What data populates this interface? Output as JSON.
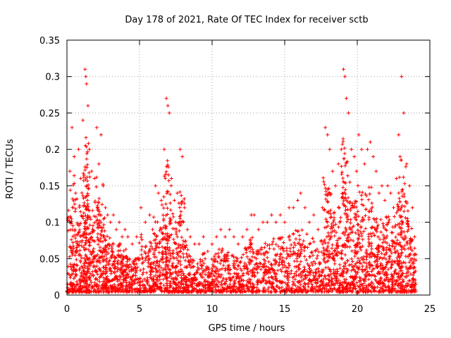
{
  "chart_data": {
    "type": "scatter",
    "title": "Day 178 of 2021, Rate Of TEC Index for receiver sctb",
    "xlabel": "GPS time / hours",
    "ylabel": "ROTI / TECUs",
    "xlim": [
      0,
      25
    ],
    "ylim": [
      0,
      0.35
    ],
    "x_ticks": [
      "0",
      "5",
      "10",
      "15",
      "20",
      "25"
    ],
    "y_ticks": [
      "0",
      "0.05",
      "0.1",
      "0.15",
      "0.2",
      "0.25",
      "0.3",
      "0.35"
    ],
    "grid": true,
    "legend": "none",
    "marker": "+",
    "color": "#ff0000",
    "series": [
      {
        "x": [
          0.05,
          0.2,
          0.35,
          0.5,
          0.6,
          0.8,
          0.95,
          1.1,
          1.25,
          1.3,
          1.35,
          1.45,
          1.55,
          1.7,
          1.9,
          2.05,
          2.2,
          2.35,
          2.5,
          2.65,
          2.8,
          3.0,
          3.2,
          3.4,
          3.6,
          3.8,
          4.0,
          4.2,
          4.5,
          4.8,
          5.1,
          5.4,
          5.7,
          5.9,
          6.1,
          6.3,
          6.5,
          6.7,
          6.85,
          6.95,
          7.05,
          7.2,
          7.4,
          7.6,
          7.8,
          7.95,
          8.1,
          8.3,
          8.5,
          8.8,
          9.1,
          9.4,
          9.7,
          10.0,
          10.3,
          10.6,
          10.9,
          11.2,
          11.5,
          11.8,
          12.1,
          12.4,
          12.7,
          12.9,
          13.2,
          13.5,
          13.8,
          14.1,
          14.4,
          14.7,
          15.0,
          15.3,
          15.6,
          15.9,
          16.1,
          16.4,
          16.7,
          17.0,
          17.3,
          17.6,
          17.8,
          17.95,
          18.1,
          18.3,
          18.5,
          18.7,
          18.9,
          19.05,
          19.15,
          19.25,
          19.4,
          19.6,
          19.8,
          19.95,
          20.1,
          20.3,
          20.5,
          20.7,
          20.9,
          21.1,
          21.3,
          21.5,
          21.7,
          21.9,
          22.1,
          22.3,
          22.5,
          22.7,
          22.85,
          22.95,
          23.05,
          23.2,
          23.4,
          23.6,
          23.8,
          23.95
        ],
        "y": [
          0.01,
          0.17,
          0.23,
          0.19,
          0.14,
          0.2,
          0.16,
          0.24,
          0.31,
          0.3,
          0.29,
          0.26,
          0.2,
          0.17,
          0.16,
          0.23,
          0.18,
          0.22,
          0.15,
          0.12,
          0.11,
          0.1,
          0.11,
          0.09,
          0.1,
          0.08,
          0.09,
          0.08,
          0.07,
          0.08,
          0.12,
          0.1,
          0.11,
          0.09,
          0.15,
          0.14,
          0.13,
          0.2,
          0.27,
          0.26,
          0.25,
          0.16,
          0.13,
          0.14,
          0.2,
          0.19,
          0.12,
          0.09,
          0.08,
          0.07,
          0.07,
          0.08,
          0.06,
          0.07,
          0.08,
          0.09,
          0.08,
          0.09,
          0.08,
          0.07,
          0.08,
          0.09,
          0.11,
          0.11,
          0.09,
          0.1,
          0.1,
          0.11,
          0.1,
          0.11,
          0.1,
          0.12,
          0.12,
          0.13,
          0.14,
          0.12,
          0.1,
          0.11,
          0.09,
          0.12,
          0.23,
          0.22,
          0.2,
          0.17,
          0.15,
          0.18,
          0.2,
          0.31,
          0.3,
          0.27,
          0.25,
          0.2,
          0.19,
          0.17,
          0.22,
          0.2,
          0.18,
          0.2,
          0.21,
          0.19,
          0.17,
          0.14,
          0.15,
          0.13,
          0.15,
          0.14,
          0.12,
          0.16,
          0.22,
          0.19,
          0.3,
          0.25,
          0.18,
          0.15,
          0.12,
          0.08
        ]
      }
    ]
  }
}
